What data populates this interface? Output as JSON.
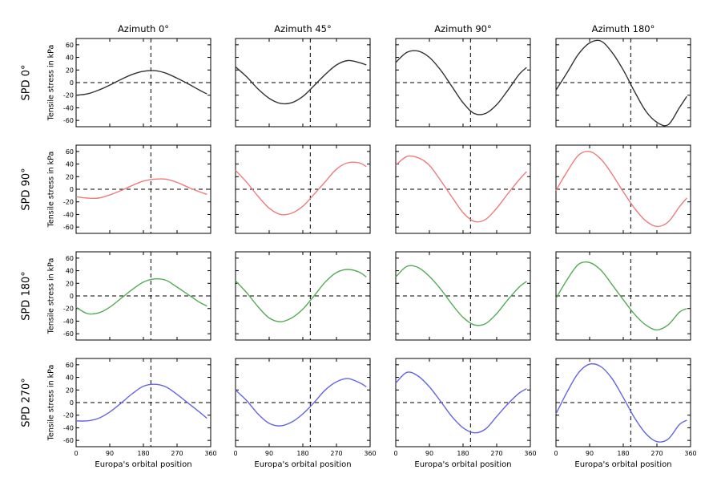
{
  "chart_data": {
    "type": "line",
    "layout": "grid",
    "columns": [
      "Azimuth 0°",
      "Azimuth 45°",
      "Azimuth 90°",
      "Azimuth 180°"
    ],
    "rows": [
      "SPD 0°",
      "SPD 90°",
      "SPD 180°",
      "SPD 270°"
    ],
    "row_colors": [
      "#333333",
      "#ee7b7b",
      "#55aa55",
      "#6464e6"
    ],
    "ylabel": "Tensile stress in kPa",
    "xlabel": "Europa's orbital position",
    "xlim": [
      0,
      360
    ],
    "ylim": [
      -70,
      70
    ],
    "xticks": [
      0,
      90,
      180,
      270,
      360
    ],
    "yticks": [
      -60,
      -40,
      -20,
      0,
      20,
      40,
      60
    ],
    "vline_x": 200,
    "hline_y": 0,
    "x": [
      0,
      30,
      60,
      90,
      120,
      150,
      180,
      210,
      240,
      270,
      300,
      330,
      350
    ],
    "series": [
      [
        [
          -20,
          -18,
          -12,
          -4,
          5,
          13,
          18,
          19,
          15,
          7,
          -2,
          -12,
          -18
        ],
        [
          25,
          9,
          -10,
          -25,
          -33,
          -32,
          -22,
          -5,
          13,
          28,
          35,
          32,
          28
        ],
        [
          32,
          48,
          50,
          40,
          20,
          -6,
          -32,
          -49,
          -49,
          -35,
          -12,
          13,
          24
        ],
        [
          -12,
          16,
          45,
          63,
          66,
          48,
          20,
          -14,
          -45,
          -63,
          -67,
          -40,
          -22
        ]
      ],
      [
        [
          -12,
          -14,
          -14,
          -9,
          -2,
          6,
          13,
          16,
          16,
          11,
          3,
          -4,
          -8
        ],
        [
          30,
          11,
          -11,
          -30,
          -40,
          -38,
          -27,
          -8,
          12,
          32,
          42,
          42,
          36
        ],
        [
          38,
          52,
          50,
          38,
          14,
          -12,
          -37,
          -51,
          -48,
          -30,
          -7,
          15,
          28
        ],
        [
          -2,
          28,
          54,
          60,
          48,
          24,
          -4,
          -30,
          -50,
          -59,
          -52,
          -28,
          -14
        ]
      ],
      [
        [
          -18,
          -28,
          -27,
          -18,
          -4,
          10,
          22,
          27,
          25,
          14,
          2,
          -10,
          -16
        ],
        [
          24,
          5,
          -17,
          -35,
          -41,
          -35,
          -21,
          0,
          22,
          37,
          42,
          38,
          30
        ],
        [
          30,
          47,
          45,
          31,
          11,
          -13,
          -34,
          -46,
          -44,
          -28,
          -6,
          14,
          23
        ],
        [
          -4,
          26,
          50,
          53,
          41,
          18,
          -6,
          -29,
          -46,
          -54,
          -46,
          -26,
          -20
        ]
      ],
      [
        [
          -29,
          -29,
          -25,
          -15,
          -1,
          14,
          26,
          29,
          25,
          13,
          -1,
          -15,
          -25
        ],
        [
          20,
          3,
          -18,
          -33,
          -37,
          -31,
          -18,
          0,
          20,
          33,
          38,
          32,
          25
        ],
        [
          31,
          48,
          42,
          25,
          2,
          -22,
          -40,
          -48,
          -42,
          -22,
          -2,
          15,
          22
        ],
        [
          -18,
          17,
          47,
          61,
          57,
          38,
          8,
          -24,
          -49,
          -62,
          -58,
          -35,
          -28
        ]
      ]
    ]
  }
}
